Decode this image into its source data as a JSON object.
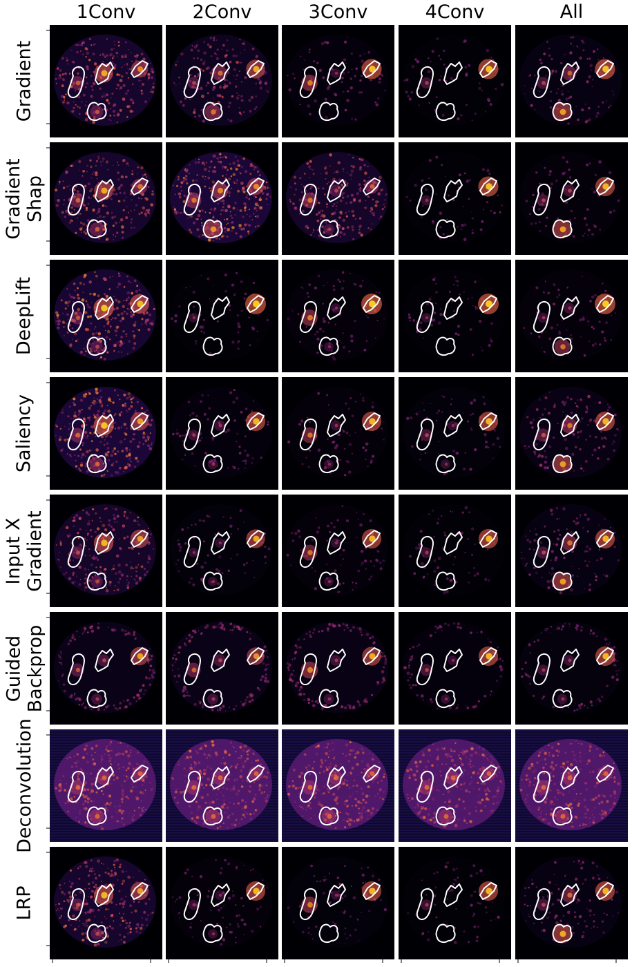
{
  "figure": {
    "columns": [
      "1Conv",
      "2Conv",
      "3Conv",
      "4Conv",
      "All"
    ],
    "rows": [
      {
        "label_lines": [
          "Gradient"
        ],
        "intensity": {
          "background": [
            0.75,
            0.5,
            0.15,
            0.08,
            0.25
          ],
          "left_lesion": [
            0.45,
            0.3,
            0.65,
            0.25,
            0.3
          ],
          "center_lesion": [
            0.85,
            0.55,
            0.1,
            0.05,
            0.5
          ],
          "right_lesion": [
            0.7,
            0.85,
            0.95,
            0.95,
            0.95
          ],
          "bottom_lesion": [
            0.4,
            0.6,
            0.05,
            0.05,
            0.8
          ]
        }
      },
      {
        "label_lines": [
          "Gradient",
          "Shap"
        ],
        "intensity": {
          "background": [
            0.75,
            0.95,
            0.7,
            0.08,
            0.12
          ],
          "left_lesion": [
            0.5,
            0.6,
            0.6,
            0.15,
            0.3
          ],
          "center_lesion": [
            0.85,
            0.7,
            0.3,
            0.05,
            0.3
          ],
          "right_lesion": [
            0.6,
            0.7,
            0.5,
            0.95,
            0.9
          ],
          "bottom_lesion": [
            0.45,
            0.75,
            0.2,
            0.05,
            0.8
          ]
        }
      },
      {
        "label_lines": [
          "DeepLift"
        ],
        "intensity": {
          "background": [
            0.85,
            0.08,
            0.12,
            0.08,
            0.12
          ],
          "left_lesion": [
            0.4,
            0.1,
            0.65,
            0.1,
            0.15
          ],
          "center_lesion": [
            0.95,
            0.05,
            0.1,
            0.05,
            0.2
          ],
          "right_lesion": [
            0.9,
            1.0,
            1.0,
            1.0,
            1.0
          ],
          "bottom_lesion": [
            0.3,
            0.05,
            0.1,
            0.05,
            0.6
          ]
        }
      },
      {
        "label_lines": [
          "Saliency"
        ],
        "intensity": {
          "background": [
            0.95,
            0.15,
            0.12,
            0.1,
            0.3
          ],
          "left_lesion": [
            0.5,
            0.2,
            0.6,
            0.3,
            0.4
          ],
          "center_lesion": [
            0.95,
            0.2,
            0.15,
            0.1,
            0.6
          ],
          "right_lesion": [
            0.8,
            0.9,
            0.9,
            0.9,
            0.9
          ],
          "bottom_lesion": [
            0.5,
            0.15,
            0.1,
            0.1,
            0.8
          ]
        }
      },
      {
        "label_lines": [
          "Input X",
          "Gradient"
        ],
        "intensity": {
          "background": [
            0.7,
            0.1,
            0.12,
            0.08,
            0.25
          ],
          "left_lesion": [
            0.35,
            0.1,
            0.6,
            0.2,
            0.3
          ],
          "center_lesion": [
            0.9,
            0.1,
            0.1,
            0.05,
            0.6
          ],
          "right_lesion": [
            0.8,
            0.85,
            0.9,
            0.9,
            0.9
          ],
          "bottom_lesion": [
            0.3,
            0.1,
            0.1,
            0.05,
            0.8
          ]
        }
      },
      {
        "label_lines": [
          "Guided",
          "Backprop"
        ],
        "intensity": {
          "background": [
            0.35,
            0.35,
            0.3,
            0.15,
            0.2
          ],
          "left_lesion": [
            0.4,
            0.5,
            0.7,
            0.3,
            0.2
          ],
          "center_lesion": [
            0.3,
            0.3,
            0.2,
            0.1,
            0.2
          ],
          "right_lesion": [
            0.8,
            0.75,
            0.85,
            0.9,
            0.9
          ],
          "bottom_lesion": [
            0.2,
            0.2,
            0.15,
            0.1,
            0.15
          ]
        }
      },
      {
        "label_lines": [
          "Deconvolution"
        ],
        "intensity": {
          "background": [
            0.8,
            0.8,
            0.8,
            0.8,
            0.8
          ],
          "left_lesion": [
            0.5,
            0.5,
            0.5,
            0.5,
            0.5
          ],
          "center_lesion": [
            0.5,
            0.5,
            0.5,
            0.5,
            0.5
          ],
          "right_lesion": [
            0.5,
            0.5,
            0.5,
            0.5,
            0.5
          ],
          "bottom_lesion": [
            0.5,
            0.5,
            0.5,
            0.5,
            0.5
          ]
        }
      },
      {
        "label_lines": [
          "LRP"
        ],
        "intensity": {
          "background": [
            0.75,
            0.12,
            0.1,
            0.08,
            0.25
          ],
          "left_lesion": [
            0.35,
            0.15,
            0.65,
            0.2,
            0.3
          ],
          "center_lesion": [
            0.9,
            0.1,
            0.1,
            0.05,
            0.55
          ],
          "right_lesion": [
            0.8,
            0.9,
            0.9,
            0.9,
            0.9
          ],
          "bottom_lesion": [
            0.3,
            0.1,
            0.05,
            0.05,
            0.85
          ]
        }
      }
    ],
    "colors": {
      "map_background": "#000004",
      "colormap": [
        "#000004",
        "#2c0b57",
        "#6a1c6e",
        "#a8326d",
        "#e25a4a",
        "#f98e24",
        "#fbd424"
      ],
      "outline": "#ffffff",
      "tick": "#000000"
    }
  }
}
